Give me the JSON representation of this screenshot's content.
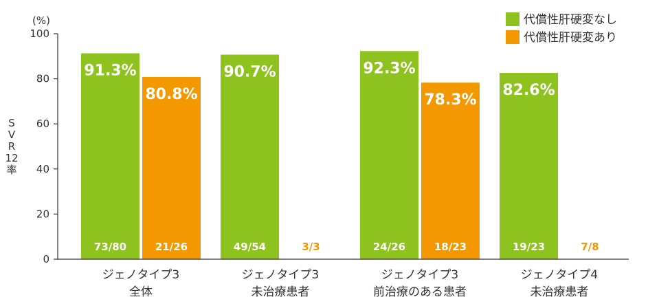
{
  "chart_data": {
    "type": "bar",
    "unit_label": "(%)",
    "ylabel_chars": [
      "S",
      "V",
      "R",
      "12",
      "率"
    ],
    "ylim": [
      0,
      100
    ],
    "yticks": [
      0,
      20,
      40,
      60,
      80,
      100
    ],
    "categories": [
      {
        "line1": "ジェノタイプ3",
        "line2": "全体"
      },
      {
        "line1": "ジェノタイプ3",
        "line2": "未治療患者"
      },
      {
        "line1": "ジェノタイプ3",
        "line2": "前治療のある患者"
      },
      {
        "line1": "ジェノタイプ4",
        "line2": "未治療患者"
      }
    ],
    "series": [
      {
        "name": "代償性肝硬変なし",
        "color": "#8dc21f",
        "values": [
          91.3,
          90.7,
          92.3,
          82.6
        ],
        "value_labels": [
          "91.3%",
          "90.7%",
          "92.3%",
          "82.6%"
        ],
        "n_labels": [
          "73/80",
          "49/54",
          "24/26",
          "19/23"
        ]
      },
      {
        "name": "代償性肝硬変あり",
        "color": "#f39800",
        "values": [
          80.8,
          null,
          78.3,
          null
        ],
        "value_labels": [
          "80.8%",
          "",
          "78.3%",
          ""
        ],
        "n_labels": [
          "21/26",
          "3/3",
          "18/23",
          "7/8"
        ]
      }
    ],
    "legend": "top-right",
    "grid": false
  }
}
